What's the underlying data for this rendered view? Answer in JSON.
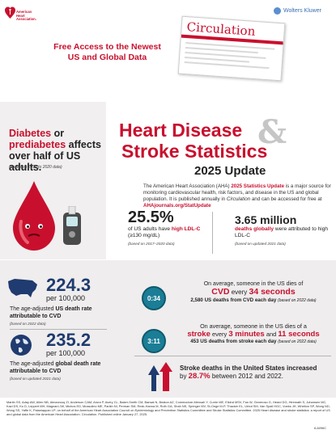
{
  "header": {
    "org_line1": "American",
    "org_line2": "Heart",
    "org_line3": "Association.",
    "publisher": "Wolters Kluwer",
    "free_access_line1": "Free Access to the Newest",
    "free_access_line2": "US and Global Data",
    "journal_title": "Circulation"
  },
  "diabetes": {
    "part1": "Diabetes",
    "part2": " or ",
    "part3": "prediabetes",
    "part4": " affects over half of US adults.",
    "note": "(based on 2017 to 2020 data)"
  },
  "title": {
    "line1": "Heart Disease",
    "amp": "&",
    "line2": "Stroke Statistics",
    "update": "2025 Update"
  },
  "intro": {
    "p1": "The American Heart Association (AHA) ",
    "p1_bold": "2025 Statistics Update",
    "p2": " is a major source for monitoring cardiovascular health, risk factors, and disease in the US and global population. It is published annually in ",
    "p2_italic": "Circulation",
    "p3": " and can be accessed for free at ",
    "link": "AHAjournals.org/StatUpdate"
  },
  "ldl": {
    "pct": "25.5%",
    "pct_text1": "of US adults have ",
    "pct_text_red": "high LDL-C",
    "pct_text2": " (≥130 mg/dL)",
    "pct_note": "(based on 2017–2020 data)",
    "million": "3.65 million",
    "million_red": "deaths globally",
    "million_text": " were attributed to high LDL-C",
    "million_note": "(based on updated 2021 data)"
  },
  "us_rate": {
    "value": "224.3",
    "per": "per 100,000",
    "text1": "The age-adjusted ",
    "text_bold": "US death rate attributable to CVD",
    "note": "(based on 2022 data)"
  },
  "global_rate": {
    "value": "235.2",
    "per": "per 100,000",
    "text1": "The age-adjusted ",
    "text_bold": "global death rate attributable to CVD",
    "note": "(based on updated 2021 data)"
  },
  "cvd": {
    "clock": "0:34",
    "l1": "On average, someone in the US dies of",
    "l2a": "CVD",
    "l2b": " every ",
    "l2c": "34 seconds",
    "l3": "2,580 US deaths from CVD each day",
    "l3_note": "(based on 2022 data)"
  },
  "stroke": {
    "clock": "3:11",
    "l1": "On average, someone in the US dies of a",
    "l2a": "stroke",
    "l2b": " every ",
    "l2c": "3 minutes",
    "l2d": " and ",
    "l2e": "11 seconds",
    "l3": "453 US deaths from stroke each day",
    "l3_note": "(based on 2022 data)"
  },
  "increase": {
    "l1": "Stroke deaths in the United States increased",
    "l2a": "by ",
    "l2b": "28.7%",
    "l2c": " between 2012 and 2022."
  },
  "references": "Martin SS, Aday AW, Allen NB, Almarzooq ZI, Anderson CAM, Arora P, Avery CL, Baker-Smith CM, Bansal N, Beaton AZ, Commodore-Mensah Y, Currie ME, Elkind MSV, Fan W, Generoso G, Heard DG, Hiremath S, Johansen MC, Kazi DS, Ko D, Leppert MH, Magnani JW, Michos ED, Mussolino ME, Parikh NI, Perman SM, Rezk-Hanna M, Roth GA, Shah NS, Springer MV, St-Onge M-P, Thacker EL, Urbut SM, Van Spall HGC, Voeks JH, Whelton SP, Wong ND, Wong SS, Yaffe K, Palaniappan LP; on behalf of the American Heart Association Council on Epidemiology and Prevention Statistics Committee and Stroke Statistics Committee. 2025 Heart disease and stroke statistics: a report of US and global data from the American Heart Association. Circulation. Published online January 27, 2025.",
  "code": "6-A096C",
  "colors": {
    "brand_red": "#c8102e",
    "navy": "#1f3b6f",
    "teal": "#1b7e96"
  }
}
